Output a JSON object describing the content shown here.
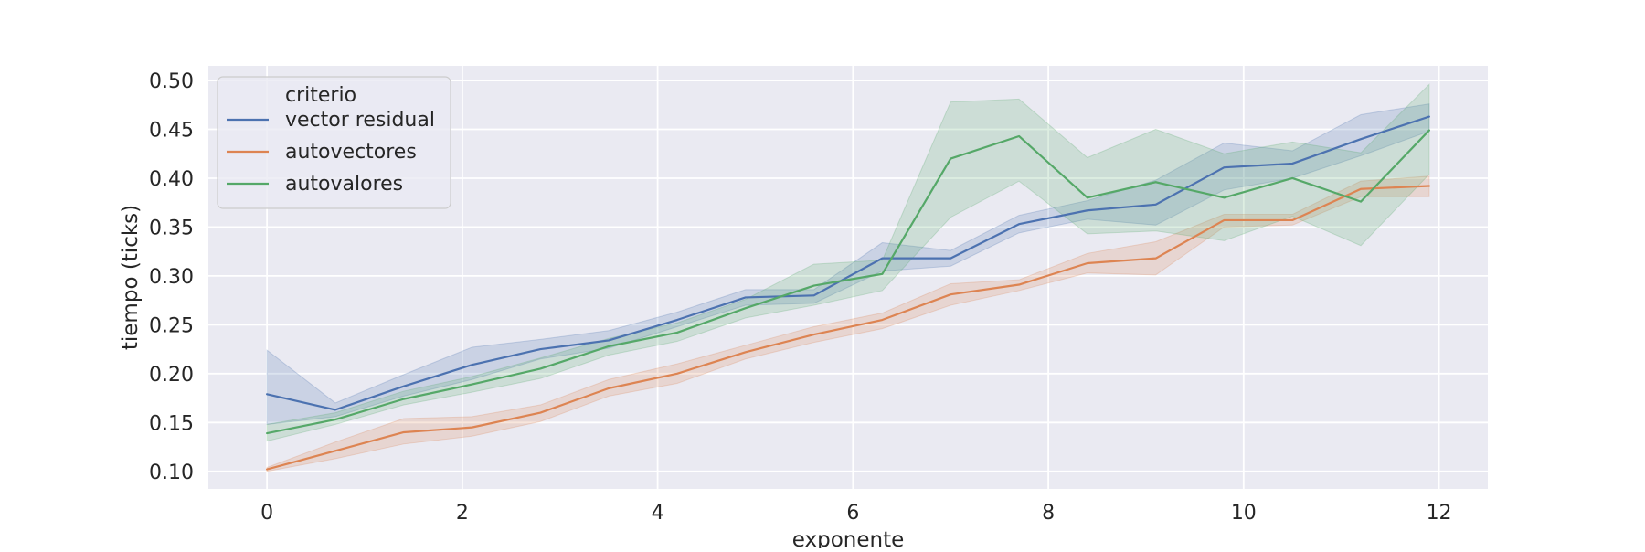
{
  "chart_data": {
    "type": "line",
    "title": "",
    "xlabel": "exponente",
    "ylabel": "tiempo (ticks)",
    "x": [
      0,
      0.7,
      1.4,
      2.1,
      2.8,
      3.5,
      4.2,
      4.9,
      5.6,
      6.3,
      7.0,
      7.7,
      8.4,
      9.1,
      9.8,
      10.5,
      11.2,
      11.9
    ],
    "xlim": [
      -0.6,
      12.5
    ],
    "ylim": [
      0.082,
      0.515
    ],
    "xticks": [
      "0",
      "2",
      "4",
      "6",
      "8",
      "10",
      "12"
    ],
    "yticks": [
      "0.10",
      "0.15",
      "0.20",
      "0.25",
      "0.30",
      "0.35",
      "0.40",
      "0.45",
      "0.50"
    ],
    "grid": true,
    "legend": {
      "title": "criterio",
      "position": "top-left"
    },
    "series": [
      {
        "name": "vector residual",
        "color": "#4c72b0",
        "values": [
          0.179,
          0.163,
          0.187,
          0.209,
          0.225,
          0.234,
          0.255,
          0.278,
          0.28,
          0.318,
          0.318,
          0.353,
          0.367,
          0.373,
          0.411,
          0.415,
          0.44,
          0.463
        ],
        "lower": [
          0.148,
          0.156,
          0.177,
          0.194,
          0.215,
          0.226,
          0.248,
          0.27,
          0.272,
          0.305,
          0.31,
          0.344,
          0.358,
          0.352,
          0.388,
          0.4,
          0.423,
          0.448
        ],
        "upper": [
          0.224,
          0.17,
          0.199,
          0.227,
          0.235,
          0.244,
          0.263,
          0.286,
          0.286,
          0.334,
          0.326,
          0.362,
          0.377,
          0.398,
          0.436,
          0.428,
          0.465,
          0.476
        ]
      },
      {
        "name": "autovectores",
        "color": "#dd8452",
        "values": [
          0.102,
          0.121,
          0.14,
          0.145,
          0.16,
          0.185,
          0.2,
          0.222,
          0.24,
          0.255,
          0.281,
          0.291,
          0.313,
          0.318,
          0.357,
          0.357,
          0.389,
          0.392
        ],
        "lower": [
          0.1,
          0.113,
          0.128,
          0.136,
          0.151,
          0.177,
          0.19,
          0.215,
          0.232,
          0.246,
          0.27,
          0.285,
          0.303,
          0.301,
          0.35,
          0.352,
          0.381,
          0.381
        ],
        "upper": [
          0.104,
          0.13,
          0.154,
          0.156,
          0.168,
          0.194,
          0.21,
          0.229,
          0.248,
          0.262,
          0.292,
          0.296,
          0.323,
          0.335,
          0.363,
          0.363,
          0.397,
          0.402
        ]
      },
      {
        "name": "autovalores",
        "color": "#55a868",
        "values": [
          0.139,
          0.153,
          0.174,
          0.189,
          0.205,
          0.228,
          0.242,
          0.267,
          0.29,
          0.302,
          0.42,
          0.443,
          0.38,
          0.396,
          0.38,
          0.4,
          0.376,
          0.449
        ],
        "lower": [
          0.131,
          0.148,
          0.168,
          0.181,
          0.195,
          0.219,
          0.233,
          0.257,
          0.27,
          0.285,
          0.36,
          0.397,
          0.343,
          0.346,
          0.336,
          0.361,
          0.331,
          0.404
        ],
        "upper": [
          0.148,
          0.16,
          0.182,
          0.197,
          0.216,
          0.236,
          0.252,
          0.276,
          0.312,
          0.316,
          0.478,
          0.481,
          0.421,
          0.45,
          0.425,
          0.437,
          0.426,
          0.496
        ]
      }
    ]
  }
}
